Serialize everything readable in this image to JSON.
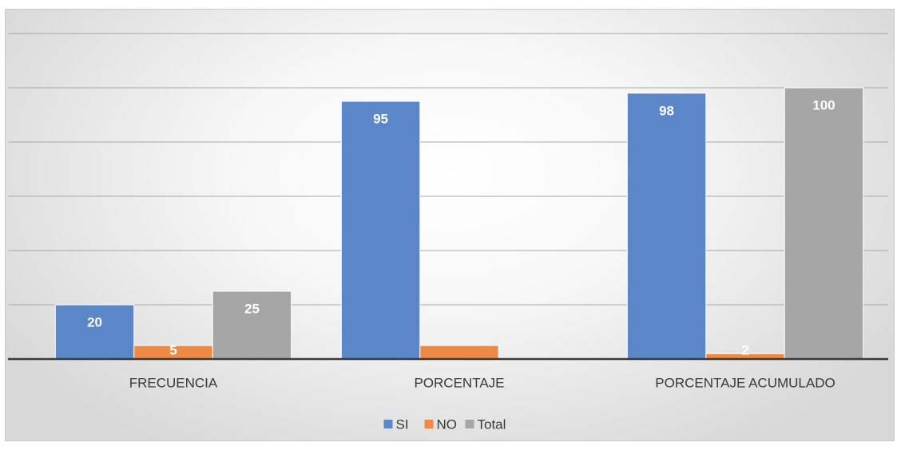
{
  "chart_data": {
    "type": "bar",
    "categories": [
      "FRECUENCIA",
      "PORCENTAJE",
      "PORCENTAJE ACUMULADO"
    ],
    "series": [
      {
        "name": "SI",
        "values": [
          20,
          95,
          98
        ],
        "labels": [
          "20",
          "95",
          "98"
        ],
        "color": "#5b87c9"
      },
      {
        "name": "NO",
        "values": [
          5,
          5,
          2
        ],
        "labels": [
          "5",
          "",
          "2"
        ],
        "color": "#ed8a45"
      },
      {
        "name": "Total",
        "values": [
          25,
          null,
          100
        ],
        "labels": [
          "25",
          "",
          "100"
        ],
        "color": "#a5a5a5"
      }
    ],
    "ylim": [
      0,
      120
    ],
    "grid": true,
    "legend": "bottom",
    "title": "",
    "xlabel": "",
    "ylabel": ""
  }
}
